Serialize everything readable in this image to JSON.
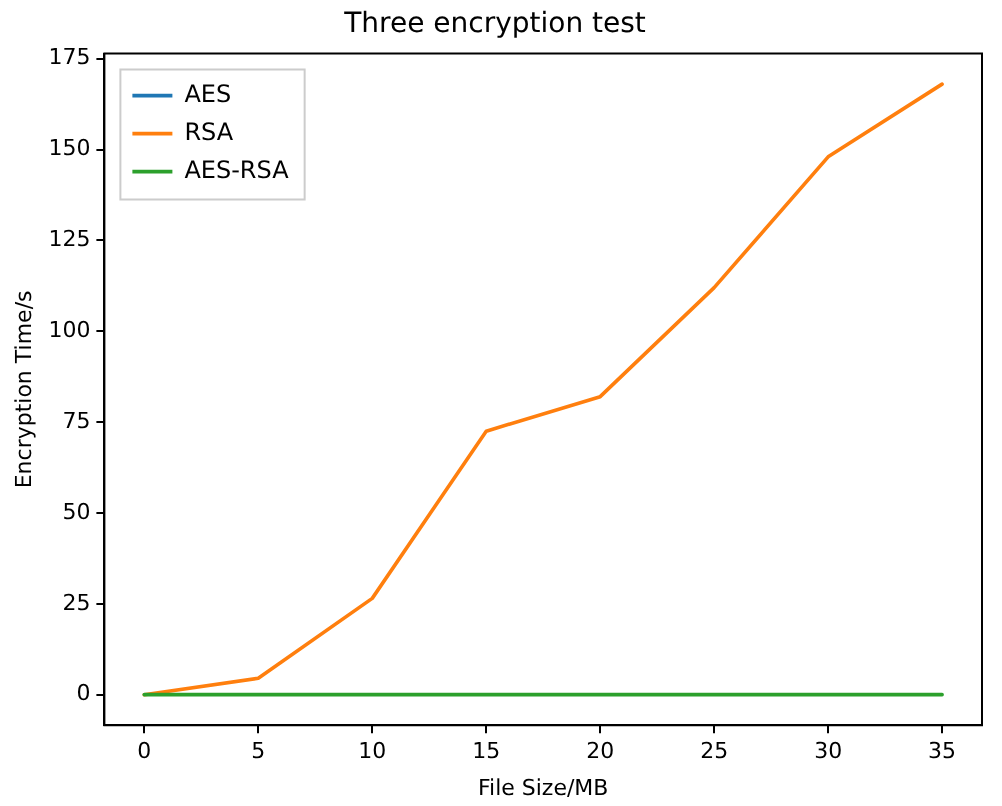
{
  "chart_data": {
    "type": "line",
    "title": "Three encryption test",
    "xlabel": "File Size/MB",
    "ylabel": "Encryption Time/s",
    "x": [
      0,
      5,
      10,
      15,
      20,
      25,
      30,
      35
    ],
    "series": [
      {
        "name": "AES",
        "color": "#1f77b4",
        "values": [
          null,
          null,
          null,
          null,
          null,
          null,
          null,
          null
        ]
      },
      {
        "name": "RSA",
        "color": "#ff7f0e",
        "values": [
          0,
          4.5,
          26.5,
          72.5,
          82,
          112,
          148,
          168
        ]
      },
      {
        "name": "AES-RSA",
        "color": "#2ca02c",
        "values": [
          0,
          0,
          0,
          0,
          0,
          0,
          0,
          0
        ]
      }
    ],
    "xlim": [
      -1.75,
      36.75
    ],
    "xticks": [
      0,
      5,
      10,
      15,
      20,
      25,
      30,
      35
    ],
    "ylim": [
      -8.4,
      176.4
    ],
    "yticks": [
      0,
      25,
      50,
      75,
      100,
      125,
      150,
      175
    ],
    "grid": false,
    "legend": "top left",
    "marker": "none",
    "line_style": "solid"
  }
}
